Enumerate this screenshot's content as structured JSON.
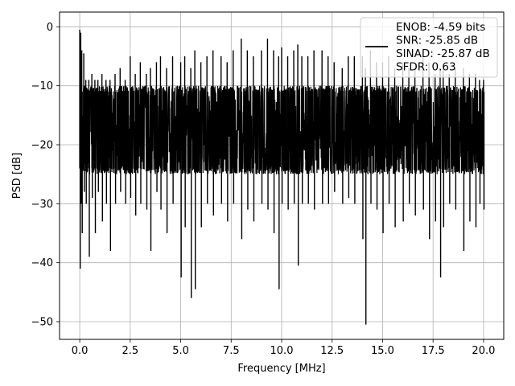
{
  "chart_data": {
    "type": "line",
    "title": "",
    "xlabel": "Frequency [MHz]",
    "ylabel": "PSD [dB]",
    "xlim": [
      -1.0,
      21.0
    ],
    "ylim": [
      -53,
      2.5
    ],
    "xticks": [
      0.0,
      2.5,
      5.0,
      7.5,
      10.0,
      12.5,
      15.0,
      17.5,
      20.0
    ],
    "xtick_labels": [
      "0.0",
      "2.5",
      "5.0",
      "7.5",
      "10.0",
      "12.5",
      "15.0",
      "17.5",
      "20.0"
    ],
    "yticks": [
      0,
      -10,
      -20,
      -30,
      -40,
      -50
    ],
    "ytick_labels": [
      "0",
      "−10",
      "−20",
      "−30",
      "−40",
      "−50"
    ],
    "grid": true,
    "legend_position": "top-right",
    "legend_entries": [
      "ENOB: -4.59 bits",
      "SNR: -25.85 dB",
      "SINAD: -25.87 dB",
      "SFDR: 0.63"
    ],
    "series": [
      {
        "color": "#000000",
        "x": [
          0.0,
          0.05,
          0.1,
          0.2,
          0.3,
          0.45,
          0.6,
          0.75,
          0.9,
          1.1,
          1.3,
          1.5,
          1.75,
          2.0,
          2.25,
          2.5,
          2.75,
          3.0,
          3.3,
          3.5,
          3.8,
          4.0,
          4.3,
          4.6,
          5.0,
          5.2,
          5.5,
          5.7,
          6.0,
          6.3,
          6.6,
          7.0,
          7.3,
          7.6,
          8.0,
          8.3,
          8.6,
          9.0,
          9.3,
          9.6,
          9.85,
          10.0,
          10.3,
          10.6,
          10.8,
          11.0,
          11.3,
          11.6,
          12.0,
          12.3,
          12.6,
          13.0,
          13.3,
          13.6,
          14.0,
          14.15,
          14.4,
          14.7,
          15.0,
          15.3,
          15.6,
          16.0,
          16.3,
          16.6,
          17.0,
          17.3,
          17.6,
          17.85,
          18.0,
          18.3,
          18.6,
          19.0,
          19.3,
          19.6,
          19.8,
          20.0
        ],
        "y_high": [
          -0.5,
          -1.0,
          -4.0,
          -4.5,
          -9.0,
          -9.0,
          -8.0,
          -9.0,
          -9.0,
          -8.0,
          -9.0,
          -9.0,
          -8.0,
          -7.0,
          -9.0,
          -5.0,
          -8.0,
          -6.0,
          -8.0,
          -7.0,
          -6.0,
          -5.0,
          -7.0,
          -5.0,
          -6.0,
          -5.0,
          -7.0,
          -4.0,
          -6.0,
          -5.0,
          -4.0,
          -5.0,
          -6.0,
          -4.0,
          -2.0,
          -4.0,
          -5.0,
          -4.0,
          -2.0,
          -4.0,
          -5.0,
          -3.5,
          -5.0,
          -4.0,
          -3.0,
          -5.0,
          -5.0,
          -4.0,
          -4.0,
          -5.0,
          -6.0,
          -7.0,
          -5.0,
          -5.0,
          -5.0,
          -7.0,
          -4.0,
          -6.0,
          -6.0,
          -5.0,
          -7.0,
          -6.0,
          -7.0,
          -7.0,
          -5.0,
          -6.0,
          -8.0,
          -7.0,
          -7.0,
          -8.0,
          -7.0,
          -7.0,
          -8.0,
          -8.0,
          -9.0,
          -9.0
        ],
        "y_low": [
          -41.0,
          -30.0,
          -35.0,
          -28.0,
          -30.0,
          -39.0,
          -29.0,
          -35.0,
          -28.0,
          -33.0,
          -30.0,
          -38.0,
          -30.0,
          -28.0,
          -30.0,
          -29.0,
          -32.0,
          -30.0,
          -31.0,
          -38.0,
          -28.0,
          -31.0,
          -35.0,
          -30.0,
          -42.5,
          -34.0,
          -46.0,
          -44.5,
          -34.0,
          -30.0,
          -32.0,
          -30.0,
          -33.0,
          -30.0,
          -36.0,
          -31.0,
          -33.0,
          -30.0,
          -31.0,
          -35.0,
          -44.5,
          -30.0,
          -31.0,
          -30.0,
          -40.5,
          -30.0,
          -30.0,
          -31.0,
          -30.0,
          -30.0,
          -28.0,
          -30.0,
          -29.0,
          -30.0,
          -36.0,
          -50.5,
          -30.0,
          -31.0,
          -35.0,
          -30.0,
          -34.0,
          -33.0,
          -30.0,
          -32.0,
          -31.0,
          -36.0,
          -33.0,
          -42.5,
          -34.0,
          -30.0,
          -31.0,
          -38.0,
          -33.0,
          -34.0,
          -30.0,
          -31.0
        ],
        "band_high": -11.0,
        "band_low": -24.0
      }
    ]
  }
}
